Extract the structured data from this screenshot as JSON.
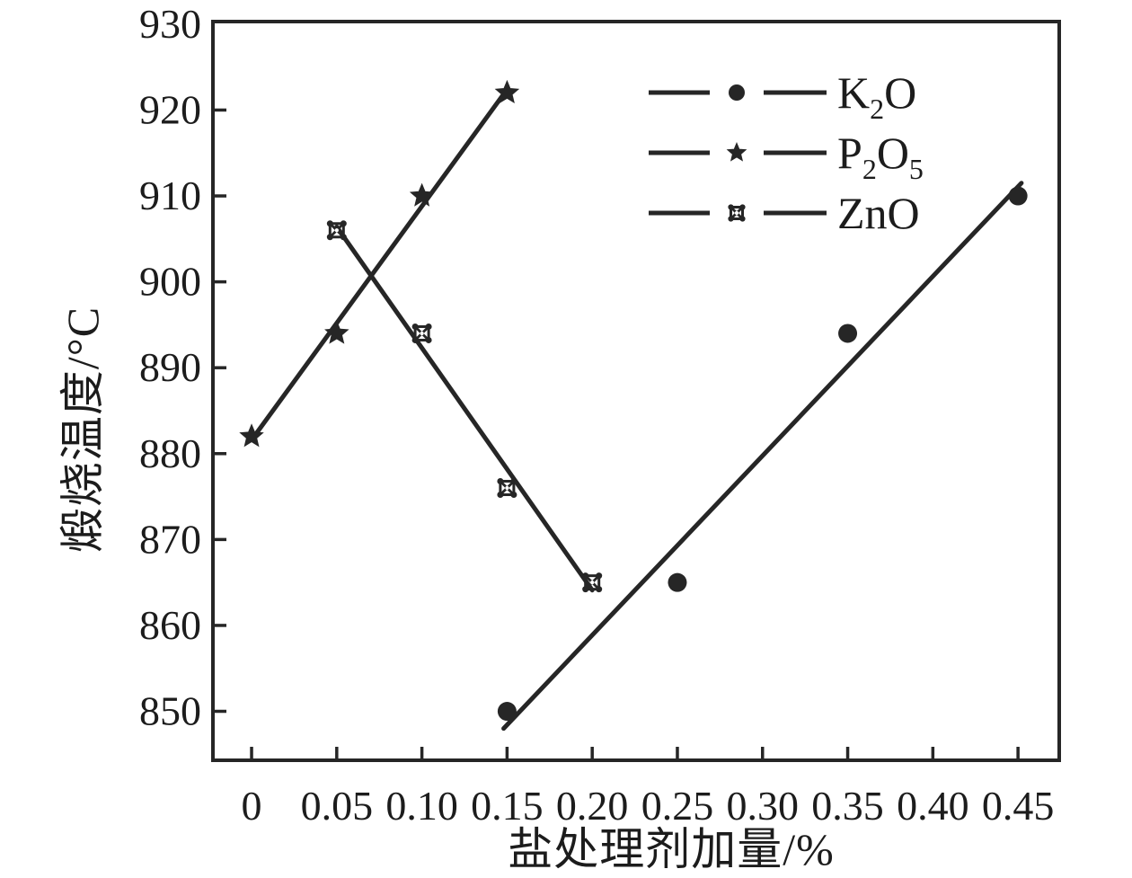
{
  "figure": {
    "background": "#ffffff",
    "ink_color": "#262626",
    "text_color": "#1c1c1c"
  },
  "chart_data": {
    "type": "scatter",
    "title": "",
    "xlabel": "盐处理剂加量/%",
    "ylabel": "煅烧温度/°C",
    "grid": false,
    "legend_position": "upper-right-inside",
    "x_range": [
      -0.0227,
      0.4742
    ],
    "y_range": [
      844.3,
      930.3
    ],
    "x_ticks": {
      "values": [
        0,
        0.05,
        0.1,
        0.15,
        0.2,
        0.25,
        0.3,
        0.35,
        0.4,
        0.45
      ],
      "labels": [
        "0",
        "0.05",
        "0.10",
        "0.15",
        "0.20",
        "0.25",
        "0.30",
        "0.35",
        "0.40",
        "0.45"
      ]
    },
    "y_ticks": {
      "values": [
        850,
        860,
        870,
        880,
        890,
        900,
        910,
        920,
        930
      ],
      "labels": [
        "850",
        "860",
        "870",
        "880",
        "890",
        "900",
        "910",
        "920",
        "930"
      ]
    },
    "series": [
      {
        "name": "k2o",
        "label_text": "K2O",
        "label_parts": [
          {
            "t": "K"
          },
          {
            "t": "2",
            "sub": true
          },
          {
            "t": "O"
          }
        ],
        "marker": "filled-circle",
        "x": [
          0.15,
          0.25,
          0.35,
          0.45
        ],
        "y": [
          850,
          865,
          894,
          910
        ],
        "fit_line": {
          "x": [
            0.148,
            0.452
          ],
          "y": [
            848.0,
            911.5
          ]
        }
      },
      {
        "name": "p2o5",
        "label_text": "P2O5",
        "label_parts": [
          {
            "t": "P"
          },
          {
            "t": "2",
            "sub": true
          },
          {
            "t": "O"
          },
          {
            "t": "5",
            "sub": true
          }
        ],
        "marker": "star",
        "x": [
          0,
          0.05,
          0.1,
          0.15
        ],
        "y": [
          882,
          894,
          910,
          922
        ],
        "fit_line": {
          "x": [
            0,
            0.15
          ],
          "y": [
            881.6,
            922.4
          ]
        }
      },
      {
        "name": "zno",
        "label_text": "ZnO",
        "label_parts": [
          {
            "t": "ZnO"
          }
        ],
        "marker": "crossed-square-dots",
        "x": [
          0.05,
          0.1,
          0.15,
          0.2
        ],
        "y": [
          906,
          894,
          876,
          865
        ],
        "fit_line": {
          "x": [
            0.05,
            0.2
          ],
          "y": [
            906.4,
            864.1
          ]
        }
      }
    ]
  }
}
